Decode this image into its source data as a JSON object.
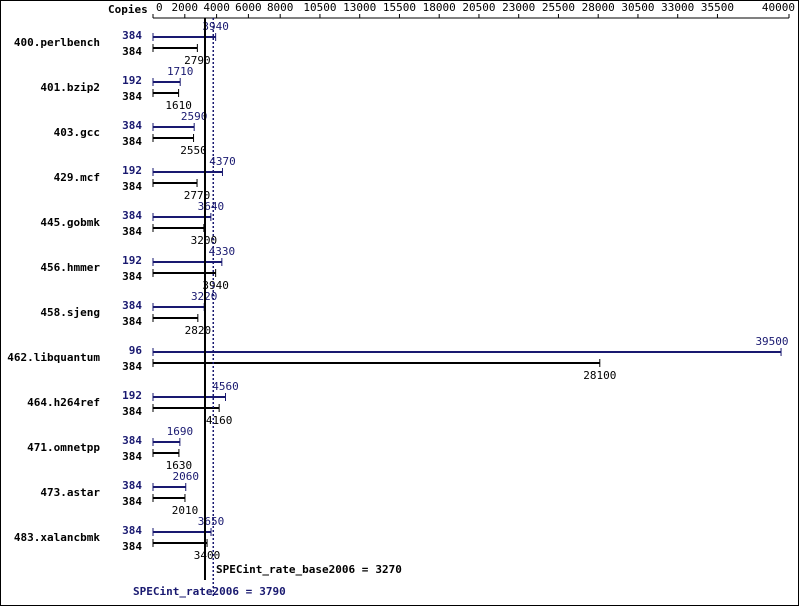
{
  "chart_data": {
    "type": "bar",
    "orientation": "horizontal",
    "axis_label": "Copies",
    "xlim": [
      0,
      40000
    ],
    "xticks": [
      0,
      2000,
      4000,
      6000,
      8000,
      10500,
      13000,
      15500,
      18000,
      20500,
      23000,
      25500,
      28000,
      30500,
      33000,
      35500,
      40000
    ],
    "categories": [
      "400.perlbench",
      "401.bzip2",
      "403.gcc",
      "429.mcf",
      "445.gobmk",
      "456.hmmer",
      "458.sjeng",
      "462.libquantum",
      "464.h264ref",
      "471.omnetpp",
      "473.astar",
      "483.xalancbmk"
    ],
    "series": [
      {
        "color": "#191970",
        "copies": [
          384,
          192,
          384,
          192,
          384,
          192,
          384,
          96,
          192,
          384,
          384,
          384
        ],
        "values": [
          3940,
          1710,
          2590,
          4370,
          3640,
          4330,
          3220,
          39500,
          4560,
          1690,
          2060,
          3650
        ]
      },
      {
        "color": "#000000",
        "copies": [
          384,
          384,
          384,
          384,
          384,
          384,
          384,
          384,
          384,
          384,
          384,
          384
        ],
        "values": [
          2790,
          1610,
          2550,
          2770,
          3200,
          3940,
          2820,
          28100,
          4160,
          1630,
          2010,
          3400
        ]
      }
    ],
    "reference_lines": [
      {
        "label": "SPECint_rate_base2006 =",
        "value": 3270,
        "color": "#000000",
        "style": "solid"
      },
      {
        "label": "SPECint_rate2006 =",
        "value": 3790,
        "color": "#191970",
        "style": "dotted"
      }
    ]
  }
}
